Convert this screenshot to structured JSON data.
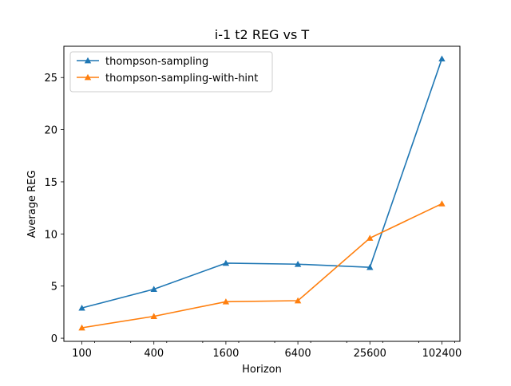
{
  "chart_data": {
    "type": "line",
    "title": "i-1 t2 REG vs T",
    "xlabel": "Horizon",
    "ylabel": "Average REG",
    "x": [
      100,
      400,
      1600,
      6400,
      25600,
      102400
    ],
    "x_tick_labels": [
      "100",
      "400",
      "1600",
      "6400",
      "25600",
      "102400"
    ],
    "x_scale": "log2",
    "ylim": [
      -0.3,
      28.0
    ],
    "y_ticks": [
      0,
      5,
      10,
      15,
      20,
      25
    ],
    "y_tick_labels": [
      "0",
      "5",
      "10",
      "15",
      "20",
      "25"
    ],
    "grid": false,
    "legend_position": "upper-left",
    "series": [
      {
        "name": "thompson-sampling",
        "color": "#1f77b4",
        "marker": "triangle-up",
        "values": [
          2.9,
          4.7,
          7.2,
          7.1,
          6.8,
          26.8
        ]
      },
      {
        "name": "thompson-sampling-with-hint",
        "color": "#ff7f0e",
        "marker": "triangle-up",
        "values": [
          1.0,
          2.1,
          3.5,
          3.6,
          9.6,
          12.9
        ]
      }
    ]
  }
}
